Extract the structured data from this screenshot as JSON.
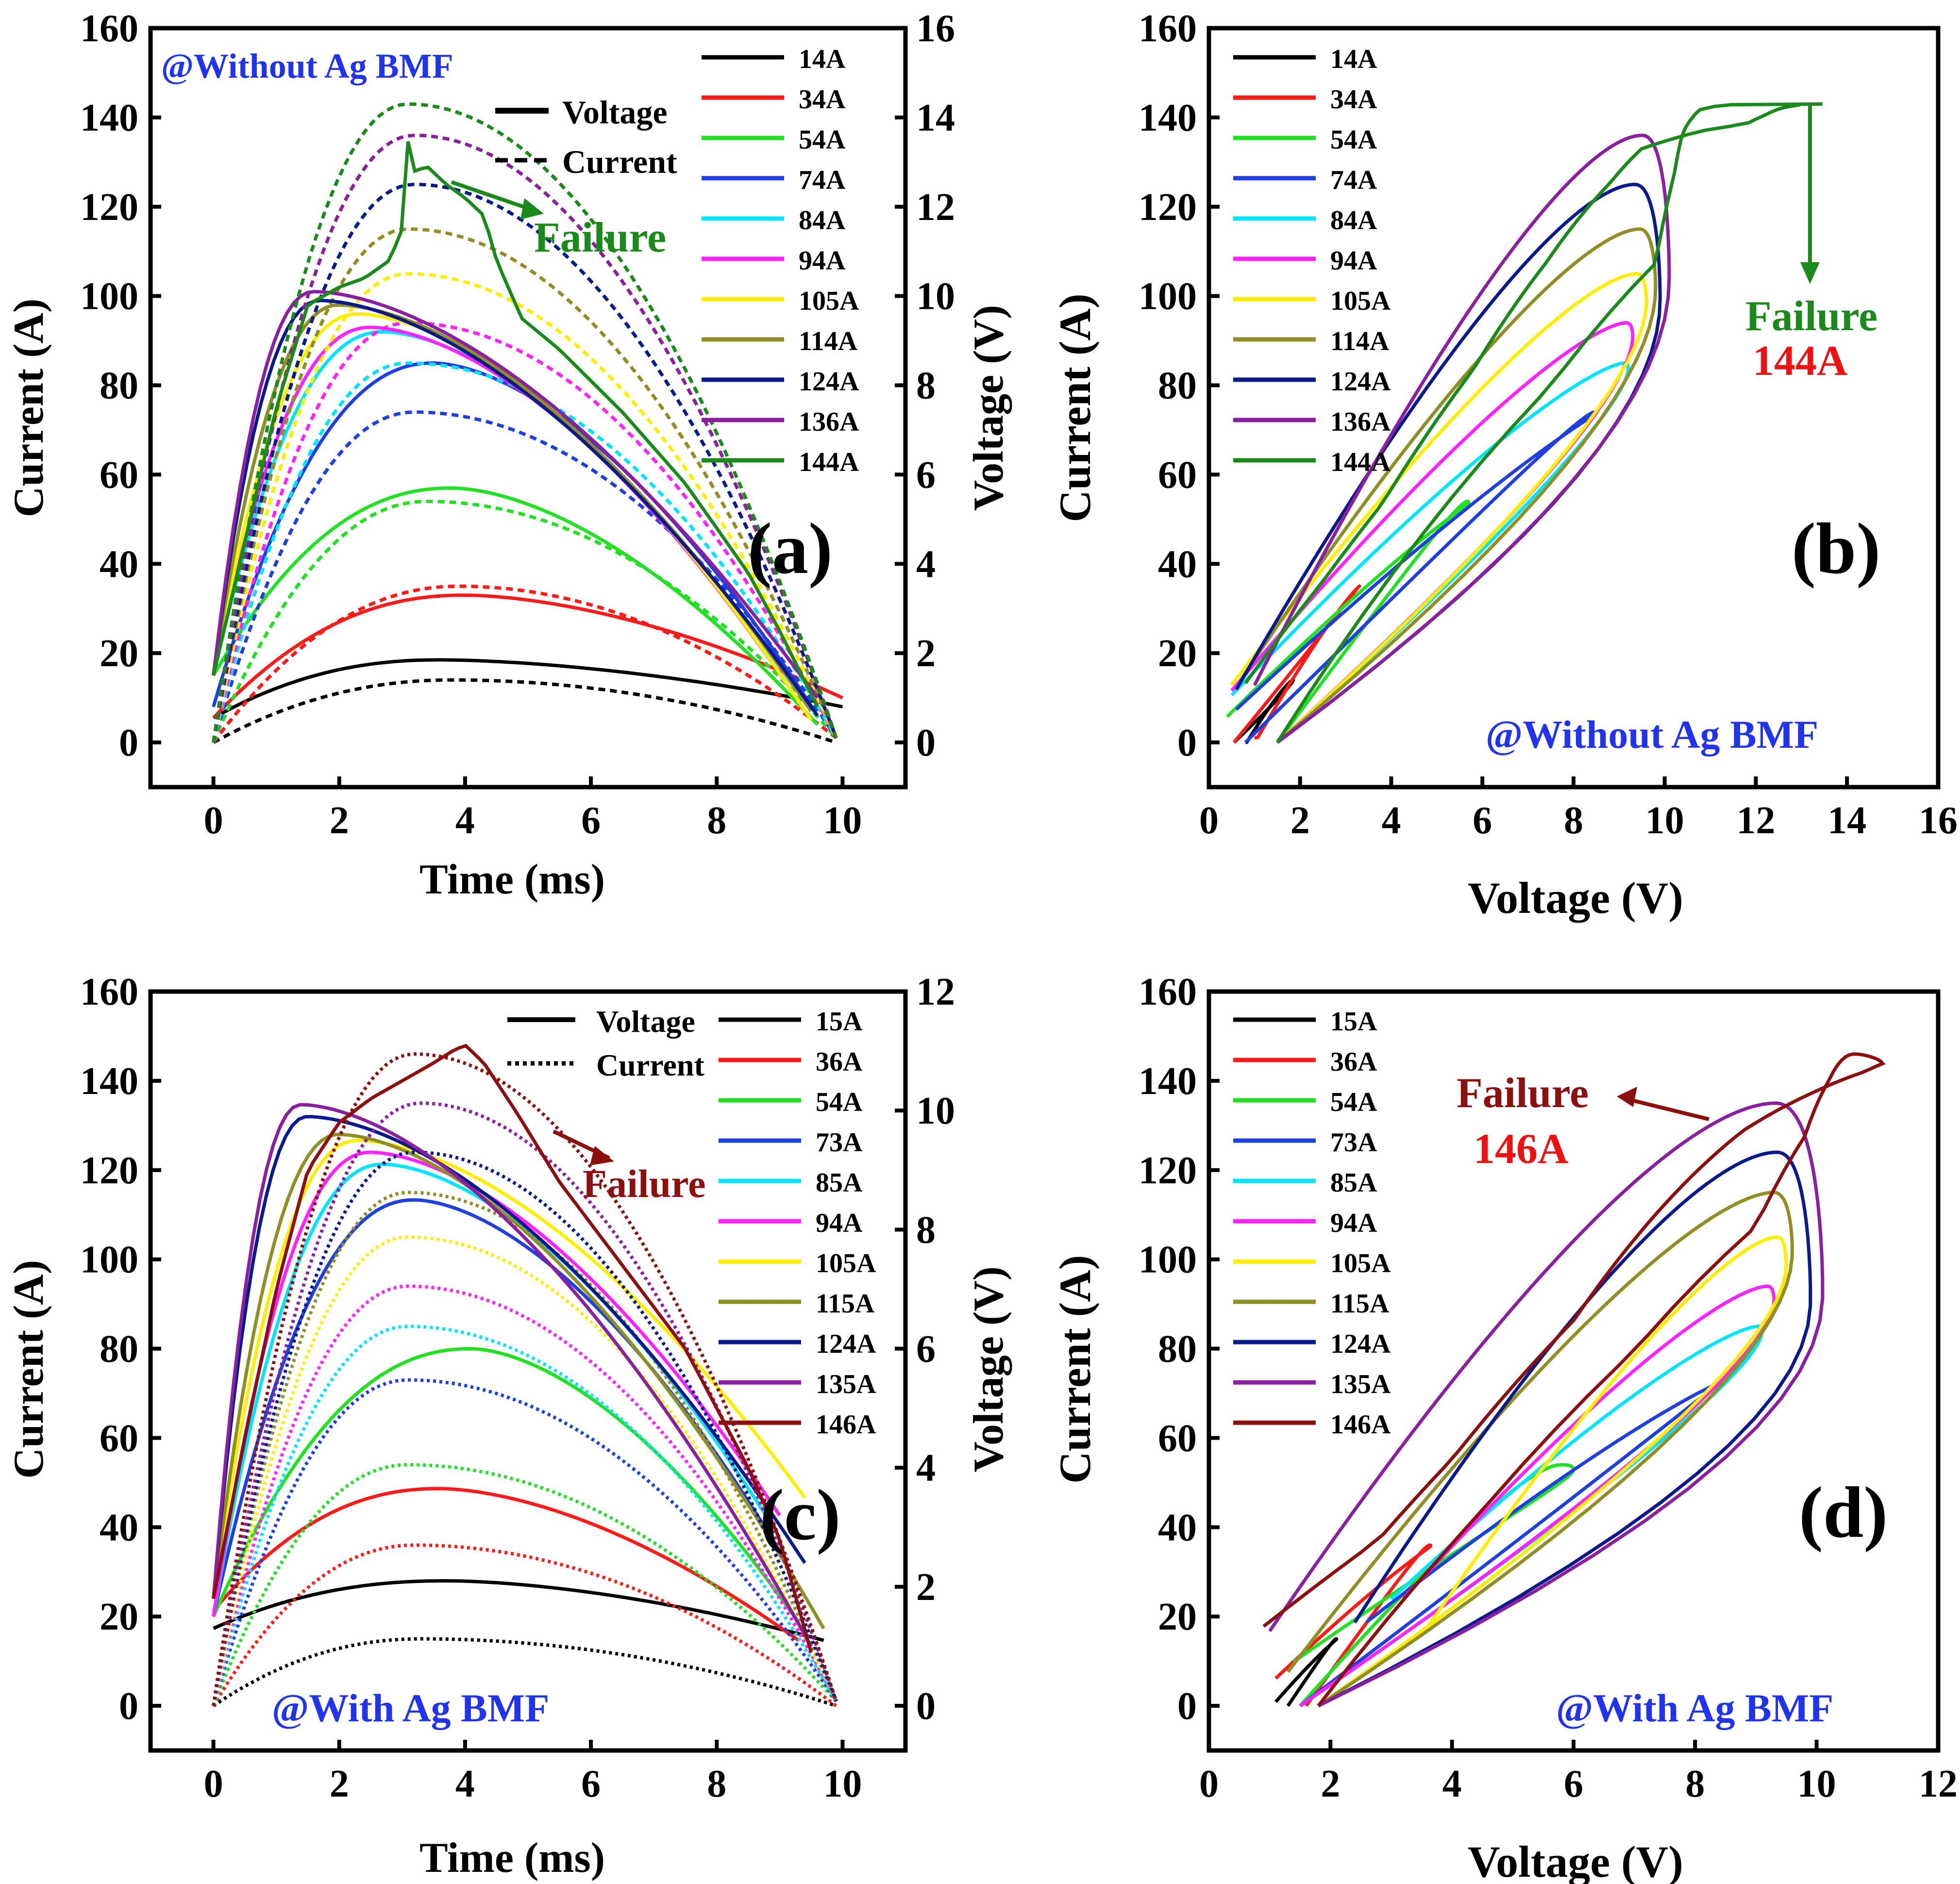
{
  "figure": {
    "colors": {
      "14A": "#000000",
      "15A": "#000000",
      "34A": "#ff1a1a",
      "36A": "#ff1a1a",
      "54A": "#22e022",
      "74A": "#1f3fe0",
      "73A": "#1f3fe0",
      "84A": "#00e5ff",
      "85A": "#00e5ff",
      "94A": "#ff22ff",
      "105A": "#ffee00",
      "114A": "#8f8f26",
      "115A": "#8f8f26",
      "124A": "#0a1a8c",
      "136A": "#8a1fa0",
      "135A": "#8a1fa0",
      "144A": "#1a8a1a",
      "146A": "#8c1010"
    },
    "annotation_colors": {
      "condition": "#2233ee",
      "failure_a": "#1a8a1a",
      "failure_red": "#ee1111",
      "failure_c": "#8c1010"
    }
  },
  "chart_data": [
    {
      "id": "a",
      "type": "line",
      "panel_label": "(a)",
      "condition_label": "@Without Ag BMF",
      "xlabel": "Time (ms)",
      "ylabel": "Current (A)",
      "y2label": "Voltage (V)",
      "xlim": [
        -1,
        11
      ],
      "ylim": [
        -10,
        160
      ],
      "y2lim": [
        -1,
        16
      ],
      "xticks": [
        0,
        2,
        4,
        6,
        8,
        10
      ],
      "yticks": [
        0,
        20,
        40,
        60,
        80,
        100,
        120,
        140,
        160
      ],
      "y2ticks": [
        0,
        2,
        4,
        6,
        8,
        10,
        12,
        14,
        16
      ],
      "style_legend": [
        {
          "label": "Voltage",
          "style": "solid"
        },
        {
          "label": "Current",
          "style": "dashed"
        }
      ],
      "legend_position": "top-right",
      "failure_label": "Failure",
      "series": [
        {
          "name": "14A",
          "current_peak": 14,
          "current_peak_time": 3.8,
          "current_end": 0,
          "voltage_start": 0.55,
          "voltage_peak": 1.85,
          "voltage_peak_time": 3.6,
          "voltage_end_time": 10.0,
          "voltage_end": 0.8
        },
        {
          "name": "34A",
          "current_peak": 35,
          "current_peak_time": 3.9,
          "current_end": 1,
          "voltage_start": 0.55,
          "voltage_peak": 3.3,
          "voltage_peak_time": 4.0,
          "voltage_end_time": 10.0,
          "voltage_end": 1.0
        },
        {
          "name": "54A",
          "current_peak": 54,
          "current_peak_time": 3.4,
          "current_end": 1,
          "voltage_start": 1.5,
          "voltage_peak": 5.7,
          "voltage_peak_time": 3.8,
          "voltage_end_time": 9.6,
          "voltage_end": 0.4
        },
        {
          "name": "74A",
          "current_peak": 74,
          "current_peak_time": 3.2,
          "current_end": 1,
          "voltage_start": 0.8,
          "voltage_peak": 8.5,
          "voltage_peak_time": 3.5,
          "voltage_end_time": 9.6,
          "voltage_end": 0.6
        },
        {
          "name": "84A",
          "current_peak": 85,
          "current_peak_time": 3.1,
          "current_end": 1,
          "voltage_start": 1.5,
          "voltage_peak": 9.2,
          "voltage_peak_time": 2.7,
          "voltage_end_time": 9.5,
          "voltage_end": 0.5
        },
        {
          "name": "94A",
          "current_peak": 94,
          "current_peak_time": 3.1,
          "current_end": 1,
          "voltage_start": 1.5,
          "voltage_peak": 9.3,
          "voltage_peak_time": 2.5,
          "voltage_end_time": 9.5,
          "voltage_end": 0.5
        },
        {
          "name": "105A",
          "current_peak": 105,
          "current_peak_time": 3.1,
          "current_end": 1,
          "voltage_start": 1.5,
          "voltage_peak": 9.6,
          "voltage_peak_time": 2.3,
          "voltage_end_time": 9.5,
          "voltage_end": 0.5
        },
        {
          "name": "114A",
          "current_peak": 115,
          "current_peak_time": 3.1,
          "current_end": 1,
          "voltage_start": 1.5,
          "voltage_peak": 9.8,
          "voltage_peak_time": 2.0,
          "voltage_end_time": 9.5,
          "voltage_end": 0.7
        },
        {
          "name": "124A",
          "current_peak": 125,
          "current_peak_time": 3.2,
          "current_end": 1,
          "voltage_start": 1.5,
          "voltage_peak": 9.9,
          "voltage_peak_time": 1.7,
          "voltage_end_time": 9.6,
          "voltage_end": 0.6
        },
        {
          "name": "136A",
          "current_peak": 136,
          "current_peak_time": 3.2,
          "current_end": 1,
          "voltage_start": 1.5,
          "voltage_peak": 10.1,
          "voltage_peak_time": 1.6,
          "voltage_end_time": 9.6,
          "voltage_end": 1.0
        },
        {
          "name": "144A",
          "current_peak": 143,
          "current_peak_time": 3.1,
          "current_end": 1,
          "voltage_start": 1.5,
          "voltage_peak": 13.6,
          "voltage_peak_time": 3.1,
          "voltage_end_time": 9.6,
          "voltage_end": 0.8
        }
      ],
      "failure_trace": {
        "name": "144A",
        "t": [
          0,
          0.5,
          1.0,
          1.5,
          2.0,
          2.4,
          2.8,
          3.0,
          3.1,
          3.2,
          3.4,
          3.7,
          4.0,
          4.3,
          4.5,
          4.9,
          5.5,
          6.5,
          7.5,
          8.5,
          9.0,
          9.6
        ],
        "v": [
          1.5,
          4.5,
          7.5,
          9.8,
          10.2,
          10.4,
          10.8,
          11.5,
          13.6,
          12.8,
          12.9,
          12.5,
          12.2,
          11.8,
          10.8,
          9.5,
          8.8,
          7.4,
          5.8,
          3.8,
          2.5,
          0.8
        ]
      }
    },
    {
      "id": "b",
      "type": "line",
      "panel_label": "(b)",
      "condition_label": "@Without Ag BMF",
      "xlabel": "Voltage (V)",
      "ylabel": "Current (A)",
      "xlim": [
        0,
        16
      ],
      "ylim": [
        -10,
        160
      ],
      "xticks": [
        0,
        2,
        4,
        6,
        8,
        10,
        12,
        14,
        16
      ],
      "yticks": [
        0,
        20,
        40,
        60,
        80,
        100,
        120,
        140,
        160
      ],
      "legend_position": "top-left",
      "failure_label": "Failure",
      "failure_current_label": "144A",
      "series": [
        {
          "name": "14A"
        },
        {
          "name": "34A"
        },
        {
          "name": "54A"
        },
        {
          "name": "74A"
        },
        {
          "name": "84A"
        },
        {
          "name": "94A"
        },
        {
          "name": "105A"
        },
        {
          "name": "114A"
        },
        {
          "name": "124A"
        },
        {
          "name": "136A"
        },
        {
          "name": "144A"
        }
      ]
    },
    {
      "id": "c",
      "type": "line",
      "panel_label": "(c)",
      "condition_label": "@With Ag BMF",
      "xlabel": "Time (ms)",
      "ylabel": "Current (A)",
      "y2label": "Voltage (V)",
      "xlim": [
        -1,
        11
      ],
      "ylim": [
        -10,
        160
      ],
      "y2lim": [
        -0.75,
        12
      ],
      "xticks": [
        0,
        2,
        4,
        6,
        8,
        10
      ],
      "yticks": [
        0,
        20,
        40,
        60,
        80,
        100,
        120,
        140,
        160
      ],
      "y2ticks": [
        0,
        2,
        4,
        6,
        8,
        10,
        12
      ],
      "style_legend": [
        {
          "label": "Voltage",
          "style": "solid"
        },
        {
          "label": "Current",
          "style": "dotted"
        }
      ],
      "legend_position": "top-right",
      "failure_label": "Failure",
      "series": [
        {
          "name": "15A",
          "current_peak": 15,
          "current_peak_time": 3.3,
          "current_end": 0,
          "voltage_start": 1.3,
          "voltage_peak": 2.1,
          "voltage_peak_time": 3.7,
          "voltage_end_time": 9.7,
          "voltage_end": 1.1
        },
        {
          "name": "36A",
          "current_peak": 36,
          "current_peak_time": 3.2,
          "current_end": 0,
          "voltage_start": 1.6,
          "voltage_peak": 3.65,
          "voltage_peak_time": 3.6,
          "voltage_end_time": 9.3,
          "voltage_end": 1.1
        },
        {
          "name": "54A",
          "current_peak": 54,
          "current_peak_time": 3.1,
          "current_end": 1,
          "voltage_start": 1.5,
          "voltage_peak": 6.0,
          "voltage_peak_time": 4.1,
          "voltage_end_time": 9.3,
          "voltage_end": 1.4
        },
        {
          "name": "73A",
          "current_peak": 73,
          "current_peak_time": 3.1,
          "current_end": 1,
          "voltage_start": 1.5,
          "voltage_peak": 8.5,
          "voltage_peak_time": 3.2,
          "voltage_end_time": 9.0,
          "voltage_end": 2.6
        },
        {
          "name": "85A",
          "current_peak": 85,
          "current_peak_time": 3.1,
          "current_end": 1,
          "voltage_start": 1.5,
          "voltage_peak": 9.1,
          "voltage_peak_time": 2.7,
          "voltage_end_time": 8.9,
          "voltage_end": 3.0
        },
        {
          "name": "94A",
          "current_peak": 94,
          "current_peak_time": 3.1,
          "current_end": 1,
          "voltage_start": 1.5,
          "voltage_peak": 9.3,
          "voltage_peak_time": 2.5,
          "voltage_end_time": 9.0,
          "voltage_end": 3.2
        },
        {
          "name": "105A",
          "current_peak": 105,
          "current_peak_time": 3.1,
          "current_end": 1,
          "voltage_start": 1.8,
          "voltage_peak": 9.5,
          "voltage_peak_time": 2.3,
          "voltage_end_time": 9.4,
          "voltage_end": 3.5
        },
        {
          "name": "115A",
          "current_peak": 115,
          "current_peak_time": 3.1,
          "current_end": 1,
          "voltage_start": 1.8,
          "voltage_peak": 9.6,
          "voltage_peak_time": 2.0,
          "voltage_end_time": 9.7,
          "voltage_end": 1.3
        },
        {
          "name": "124A",
          "current_peak": 124,
          "current_peak_time": 3.2,
          "current_end": 1,
          "voltage_start": 1.8,
          "voltage_peak": 9.9,
          "voltage_peak_time": 1.5,
          "voltage_end_time": 9.4,
          "voltage_end": 2.4
        },
        {
          "name": "135A",
          "current_peak": 135,
          "current_peak_time": 3.3,
          "current_end": 1,
          "voltage_start": 1.8,
          "voltage_peak": 10.1,
          "voltage_peak_time": 1.4,
          "voltage_end_time": 9.5,
          "voltage_end": 1.0
        },
        {
          "name": "146A",
          "current_peak": 146,
          "current_peak_time": 3.2,
          "current_end": 1,
          "voltage_start": 1.8,
          "voltage_peak": 11.1,
          "voltage_peak_time": 4.0,
          "voltage_end_time": 9.5,
          "voltage_end": 0.9
        }
      ],
      "failure_trace": {
        "name": "146A",
        "t": [
          0,
          0.5,
          1.0,
          1.5,
          2.0,
          2.5,
          3.0,
          3.5,
          3.8,
          4.0,
          4.3,
          4.8,
          5.5,
          6.5,
          7.5,
          8.5,
          9.0,
          9.5
        ],
        "v": [
          1.8,
          4.5,
          7.0,
          9.0,
          9.8,
          10.2,
          10.5,
          10.8,
          11.0,
          11.1,
          10.8,
          10.0,
          8.8,
          7.4,
          6.0,
          4.0,
          2.8,
          0.9
        ]
      }
    },
    {
      "id": "d",
      "type": "line",
      "panel_label": "(d)",
      "condition_label": "@With Ag BMF",
      "xlabel": "Voltage (V)",
      "ylabel": "Current (A)",
      "xlim": [
        0,
        12
      ],
      "ylim": [
        -10,
        160
      ],
      "xticks": [
        0,
        2,
        4,
        6,
        8,
        10,
        12
      ],
      "yticks": [
        0,
        20,
        40,
        60,
        80,
        100,
        120,
        140,
        160
      ],
      "legend_position": "top-left",
      "failure_label": "Failure",
      "failure_current_label": "146A",
      "series": [
        {
          "name": "15A"
        },
        {
          "name": "36A"
        },
        {
          "name": "54A"
        },
        {
          "name": "73A"
        },
        {
          "name": "85A"
        },
        {
          "name": "94A"
        },
        {
          "name": "105A"
        },
        {
          "name": "115A"
        },
        {
          "name": "124A"
        },
        {
          "name": "135A"
        },
        {
          "name": "146A"
        }
      ]
    }
  ]
}
